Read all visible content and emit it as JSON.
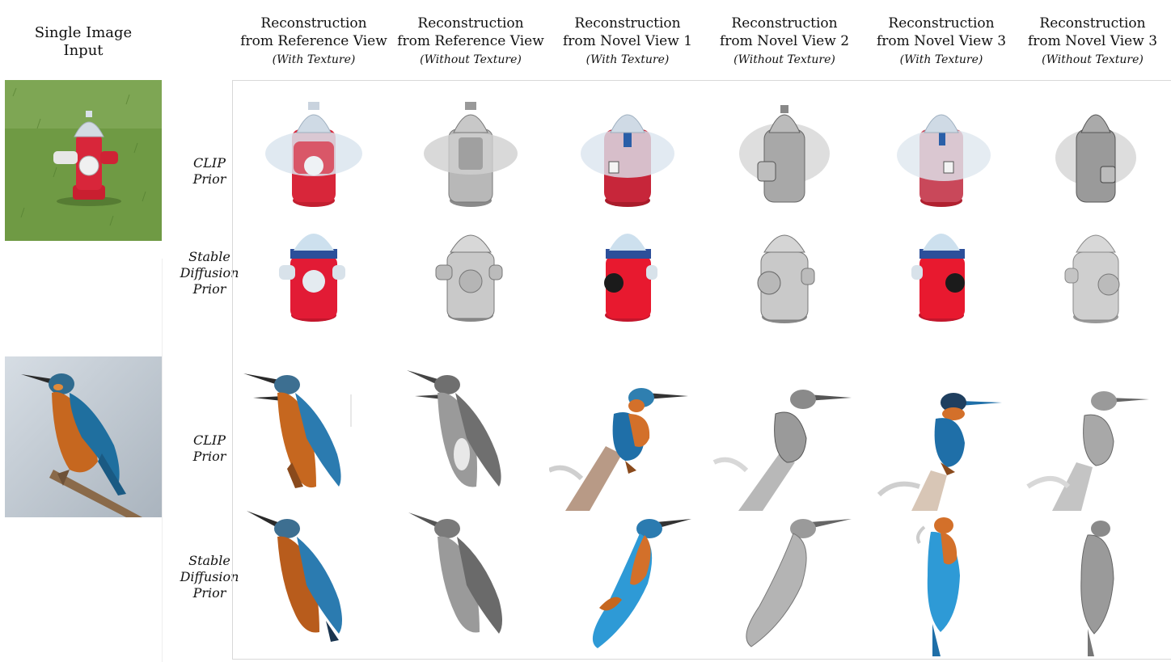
{
  "input_title": "Single Image\nInput",
  "columns": [
    {
      "title": "Reconstruction\nfrom Reference View",
      "sub": "(With Texture)"
    },
    {
      "title": "Reconstruction\nfrom Reference View",
      "sub": "(Without Texture)"
    },
    {
      "title": "Reconstruction\nfrom Novel View 1",
      "sub": "(With Texture)"
    },
    {
      "title": "Reconstruction\nfrom Novel View 2",
      "sub": "(Without Texture)"
    },
    {
      "title": "Reconstruction\nfrom Novel View 3",
      "sub": "(With Texture)"
    },
    {
      "title": "Reconstruction\nfrom Novel View 3",
      "sub": "(Without Texture)"
    }
  ],
  "rows": [
    {
      "label": "CLIP\nPrior"
    },
    {
      "label": "Stable\nDiffusion\nPrior"
    },
    {
      "label": "CLIP\nPrior"
    },
    {
      "label": "Stable\nDiffusion\nPrior"
    }
  ],
  "colors": {
    "hydrant_red": "#d8263a",
    "hydrant_silver": "#c9d3de",
    "grass": "#5f8a3a",
    "bird_orange": "#c6671f",
    "bird_blue": "#1f7fc7",
    "branch": "#8a6a4a",
    "gray_mesh": "#8a8a8a"
  }
}
